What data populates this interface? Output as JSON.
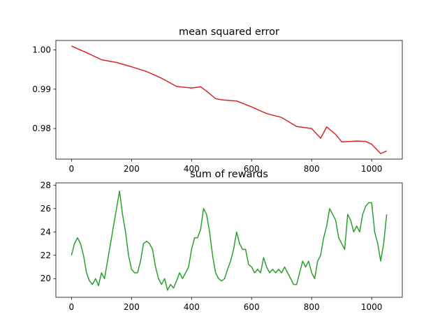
{
  "chart_data": [
    {
      "type": "line",
      "title": "mean squared error",
      "xlim": [
        -52,
        1102
      ],
      "ylim": [
        0.9722,
        1.0024
      ],
      "xticks": [
        0,
        200,
        400,
        600,
        800,
        1000
      ],
      "yticks": [
        0.98,
        0.99,
        1.0
      ],
      "ytick_labels": [
        "0.98",
        "0.99",
        "1.00"
      ],
      "grid": false,
      "series": [
        {
          "color": "#d62728",
          "x": [
            0,
            50,
            100,
            150,
            200,
            250,
            300,
            350,
            400,
            430,
            450,
            480,
            500,
            550,
            600,
            650,
            700,
            750,
            800,
            830,
            850,
            880,
            900,
            950,
            980,
            1000,
            1030,
            1050
          ],
          "y": [
            1.001,
            0.9993,
            0.9975,
            0.9968,
            0.9957,
            0.9945,
            0.9928,
            0.9907,
            0.9903,
            0.9906,
            0.9895,
            0.9876,
            0.9873,
            0.987,
            0.9855,
            0.9838,
            0.9828,
            0.9805,
            0.98,
            0.9775,
            0.9804,
            0.9785,
            0.9766,
            0.9768,
            0.9767,
            0.976,
            0.9736,
            0.9743
          ]
        }
      ]
    },
    {
      "type": "line",
      "title": "sum of rewards",
      "xlim": [
        -52,
        1102
      ],
      "ylim": [
        18.4,
        28.2
      ],
      "xticks": [
        0,
        200,
        400,
        600,
        800,
        1000
      ],
      "yticks": [
        20,
        22,
        24,
        26,
        28
      ],
      "ytick_labels": [
        "20",
        "22",
        "24",
        "26",
        "28"
      ],
      "grid": false,
      "series": [
        {
          "color": "#2ca02c",
          "x": [
            0,
            10,
            20,
            30,
            40,
            50,
            60,
            70,
            80,
            90,
            100,
            110,
            120,
            130,
            140,
            150,
            160,
            170,
            180,
            190,
            200,
            210,
            220,
            230,
            240,
            250,
            260,
            270,
            280,
            290,
            300,
            310,
            320,
            330,
            340,
            350,
            360,
            370,
            380,
            390,
            400,
            410,
            420,
            430,
            440,
            450,
            460,
            470,
            480,
            490,
            500,
            510,
            520,
            530,
            540,
            550,
            560,
            570,
            580,
            590,
            600,
            610,
            620,
            630,
            640,
            650,
            660,
            670,
            680,
            690,
            700,
            710,
            720,
            730,
            740,
            750,
            760,
            770,
            780,
            790,
            800,
            810,
            820,
            830,
            840,
            850,
            860,
            870,
            880,
            890,
            900,
            910,
            920,
            930,
            940,
            950,
            960,
            970,
            980,
            990,
            1000,
            1010,
            1020,
            1030,
            1040,
            1050
          ],
          "y": [
            22.0,
            23.0,
            23.5,
            23.0,
            22.0,
            20.5,
            19.8,
            19.5,
            20.0,
            19.4,
            20.5,
            20.0,
            21.5,
            23.0,
            24.5,
            26.0,
            27.5,
            25.5,
            24.0,
            22.0,
            20.8,
            20.5,
            20.5,
            21.5,
            23.0,
            23.2,
            23.0,
            22.5,
            21.0,
            20.0,
            19.5,
            20.0,
            19.0,
            19.5,
            19.2,
            19.8,
            20.5,
            20.0,
            20.5,
            21.0,
            22.5,
            23.5,
            23.5,
            24.2,
            26.0,
            25.5,
            24.0,
            22.0,
            20.5,
            20.0,
            19.8,
            20.0,
            20.8,
            21.5,
            22.5,
            24.0,
            23.0,
            22.5,
            22.5,
            21.2,
            21.0,
            20.5,
            20.8,
            20.5,
            21.8,
            21.0,
            20.5,
            20.8,
            20.5,
            20.8,
            20.5,
            21.0,
            20.5,
            20.0,
            19.5,
            19.5,
            20.5,
            21.5,
            21.0,
            21.5,
            20.5,
            20.0,
            21.5,
            22.0,
            23.5,
            24.5,
            26.0,
            25.5,
            25.0,
            23.5,
            23.0,
            22.5,
            25.5,
            25.0,
            24.0,
            24.5,
            24.0,
            25.5,
            26.2,
            26.5,
            26.5,
            24.0,
            23.0,
            21.5,
            23.0,
            25.5
          ]
        }
      ]
    }
  ]
}
